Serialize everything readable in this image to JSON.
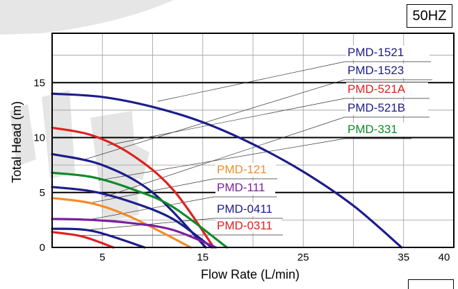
{
  "badge": "50HZ",
  "chart_data": {
    "type": "line",
    "title": "",
    "xlabel": "Flow Rate (L/min)",
    "ylabel": "Total Head (m)",
    "xlim": [
      0,
      40
    ],
    "ylim": [
      0,
      19.5
    ],
    "x_ticks": [
      5,
      15,
      25,
      35,
      40
    ],
    "y_ticks": [
      0,
      5,
      10,
      15
    ],
    "grid": true,
    "legend": "inline labels, right side",
    "series": [
      {
        "name": "PMD-1521",
        "color": "#1c1c8c",
        "x": [
          0,
          5,
          10,
          15,
          20,
          25,
          30,
          34.8
        ],
        "y": [
          14.0,
          13.7,
          12.8,
          11.4,
          9.4,
          6.9,
          3.8,
          0
        ]
      },
      {
        "name": "PMD-1523",
        "color": "#1c1c8c",
        "x": [
          0,
          5,
          10,
          15.3
        ],
        "y": [
          8.5,
          7.5,
          5.0,
          0
        ]
      },
      {
        "name": "PMD-521A",
        "color": "#e0201e",
        "x": [
          0,
          4,
          8,
          12,
          16.1
        ],
        "y": [
          10.9,
          10.2,
          8.4,
          5.3,
          0
        ]
      },
      {
        "name": "PMD-521B",
        "color": "#1c1c8c",
        "x": [
          0,
          4,
          8,
          12,
          15.9
        ],
        "y": [
          5.5,
          5.1,
          4.1,
          2.6,
          0
        ]
      },
      {
        "name": "PMD-331",
        "color": "#0e8a28",
        "x": [
          0,
          4,
          8,
          12,
          17.4
        ],
        "y": [
          6.8,
          6.4,
          5.3,
          3.7,
          0
        ]
      },
      {
        "name": "PMD-121",
        "color": "#f28c28",
        "x": [
          0,
          4,
          8,
          13.8
        ],
        "y": [
          4.5,
          4.0,
          2.7,
          0
        ]
      },
      {
        "name": "PMD-111",
        "color": "#7b1fa2",
        "x": [
          0,
          4,
          8,
          12,
          16.3
        ],
        "y": [
          2.6,
          2.5,
          2.2,
          1.6,
          0
        ]
      },
      {
        "name": "PMD-0411",
        "color": "#1c1c8c",
        "x": [
          0,
          4,
          9.2
        ],
        "y": [
          1.7,
          1.5,
          0
        ]
      },
      {
        "name": "PMD-0311",
        "color": "#e0201e",
        "x": [
          0,
          3,
          6.1
        ],
        "y": [
          1.4,
          1.0,
          0
        ]
      }
    ]
  }
}
